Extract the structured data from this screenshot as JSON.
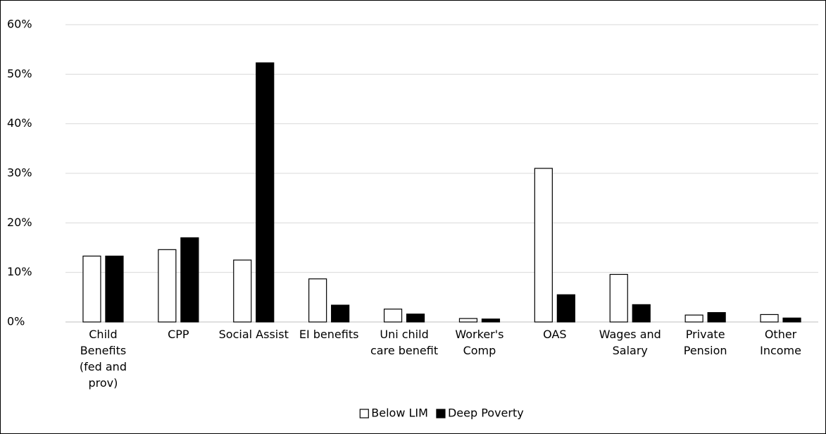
{
  "chart_data": {
    "type": "bar",
    "categories": [
      "Child Benefits (fed and prov)",
      "CPP",
      "Social Assist",
      "EI benefits",
      "Uni child care benefit",
      "Worker's Comp",
      "OAS",
      "Wages and Salary",
      "Private Pension",
      "Other Income"
    ],
    "series": [
      {
        "name": "Below LIM",
        "color": "#ffffff",
        "values": [
          13.3,
          14.6,
          12.5,
          8.7,
          2.6,
          0.7,
          31.0,
          9.6,
          1.4,
          1.5
        ]
      },
      {
        "name": "Deep Poverty",
        "color": "#000000",
        "values": [
          13.3,
          17.0,
          52.3,
          3.4,
          1.6,
          0.6,
          5.5,
          3.5,
          1.9,
          0.8
        ]
      }
    ],
    "ylim": [
      0,
      60
    ],
    "yticks": [
      {
        "value": 0,
        "label": "0%"
      },
      {
        "value": 10,
        "label": "10%"
      },
      {
        "value": 20,
        "label": "20%"
      },
      {
        "value": 30,
        "label": "30%"
      },
      {
        "value": 40,
        "label": "40%"
      },
      {
        "value": 50,
        "label": "50%"
      },
      {
        "value": 60,
        "label": "60%"
      }
    ],
    "grid": true,
    "legend": "bottom"
  }
}
